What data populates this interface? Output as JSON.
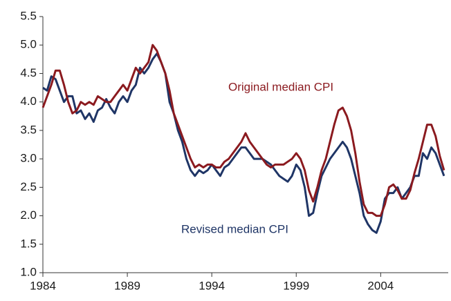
{
  "chart_data": {
    "type": "line",
    "x": [
      1984,
      1984.25,
      1984.5,
      1984.75,
      1985,
      1985.25,
      1985.5,
      1985.75,
      1986,
      1986.25,
      1986.5,
      1986.75,
      1987,
      1987.25,
      1987.5,
      1987.75,
      1988,
      1988.25,
      1988.5,
      1988.75,
      1989,
      1989.25,
      1989.5,
      1989.75,
      1990,
      1990.25,
      1990.5,
      1990.75,
      1991,
      1991.25,
      1991.5,
      1991.75,
      1992,
      1992.25,
      1992.5,
      1992.75,
      1993,
      1993.25,
      1993.5,
      1993.75,
      1994,
      1994.25,
      1994.5,
      1994.75,
      1995,
      1995.25,
      1995.5,
      1995.75,
      1996,
      1996.25,
      1996.5,
      1996.75,
      1997,
      1997.25,
      1997.5,
      1997.75,
      1998,
      1998.25,
      1998.5,
      1998.75,
      1999,
      1999.25,
      1999.5,
      1999.75,
      2000,
      2000.25,
      2000.5,
      2000.75,
      2001,
      2001.25,
      2001.5,
      2001.75,
      2002,
      2002.25,
      2002.5,
      2002.75,
      2003,
      2003.25,
      2003.5,
      2003.75,
      2004,
      2004.25,
      2004.5,
      2004.75,
      2005,
      2005.25,
      2005.5,
      2005.75,
      2006,
      2006.25,
      2006.5,
      2006.75,
      2007,
      2007.25,
      2007.5,
      2007.75
    ],
    "series": [
      {
        "name": "Original median CPI",
        "color": "#8b1a1f",
        "values": [
          3.9,
          4.1,
          4.3,
          4.55,
          4.55,
          4.3,
          4.0,
          3.8,
          3.85,
          4.0,
          3.95,
          4.0,
          3.95,
          4.1,
          4.05,
          4.0,
          4.0,
          4.1,
          4.2,
          4.3,
          4.2,
          4.4,
          4.6,
          4.5,
          4.6,
          4.7,
          5.0,
          4.9,
          4.7,
          4.5,
          4.2,
          3.8,
          3.6,
          3.4,
          3.2,
          3.0,
          2.85,
          2.9,
          2.85,
          2.9,
          2.9,
          2.85,
          2.85,
          2.95,
          3.0,
          3.1,
          3.2,
          3.3,
          3.45,
          3.3,
          3.2,
          3.1,
          3.0,
          2.9,
          2.85,
          2.9,
          2.9,
          2.9,
          2.95,
          3.0,
          3.1,
          3.0,
          2.8,
          2.45,
          2.25,
          2.5,
          2.8,
          3.0,
          3.3,
          3.6,
          3.85,
          3.9,
          3.75,
          3.5,
          3.1,
          2.6,
          2.2,
          2.05,
          2.05,
          2.0,
          2.0,
          2.2,
          2.5,
          2.55,
          2.45,
          2.3,
          2.3,
          2.45,
          2.75,
          3.0,
          3.3,
          3.6,
          3.6,
          3.4,
          3.05,
          2.8
        ]
      },
      {
        "name": "Revised median CPI",
        "color": "#1f3566",
        "values": [
          4.25,
          4.2,
          4.45,
          4.4,
          4.2,
          4.0,
          4.1,
          4.1,
          3.8,
          3.85,
          3.7,
          3.8,
          3.65,
          3.85,
          3.9,
          4.05,
          3.9,
          3.8,
          4.0,
          4.1,
          4.0,
          4.2,
          4.3,
          4.6,
          4.5,
          4.6,
          4.75,
          4.85,
          4.7,
          4.5,
          4.0,
          3.8,
          3.5,
          3.3,
          3.0,
          2.8,
          2.7,
          2.8,
          2.75,
          2.8,
          2.9,
          2.8,
          2.7,
          2.85,
          2.9,
          3.0,
          3.1,
          3.2,
          3.2,
          3.1,
          3.0,
          3.0,
          3.0,
          2.95,
          2.9,
          2.8,
          2.7,
          2.65,
          2.6,
          2.7,
          2.9,
          2.8,
          2.5,
          2.0,
          2.05,
          2.4,
          2.7,
          2.85,
          3.0,
          3.1,
          3.2,
          3.3,
          3.2,
          3.0,
          2.7,
          2.4,
          2.0,
          1.85,
          1.75,
          1.7,
          1.9,
          2.3,
          2.4,
          2.4,
          2.5,
          2.3,
          2.4,
          2.5,
          2.7,
          2.7,
          3.1,
          3.0,
          3.2,
          3.1,
          2.9,
          2.7
        ]
      }
    ],
    "xlim": [
      1984,
      2008
    ],
    "xticks": [
      1984,
      1989,
      1994,
      1999,
      2004
    ],
    "ylim": [
      1,
      5.5
    ],
    "yticks": [
      {
        "value": 1,
        "label": "1.0"
      },
      1.5,
      {
        "value": 2,
        "label": "2.0"
      },
      2.5,
      {
        "value": 3,
        "label": "3.0"
      },
      3.5,
      {
        "value": 4,
        "label": "4.0"
      },
      4.5,
      {
        "value": 5,
        "label": "5.0"
      },
      5.5
    ],
    "grid": false
  }
}
